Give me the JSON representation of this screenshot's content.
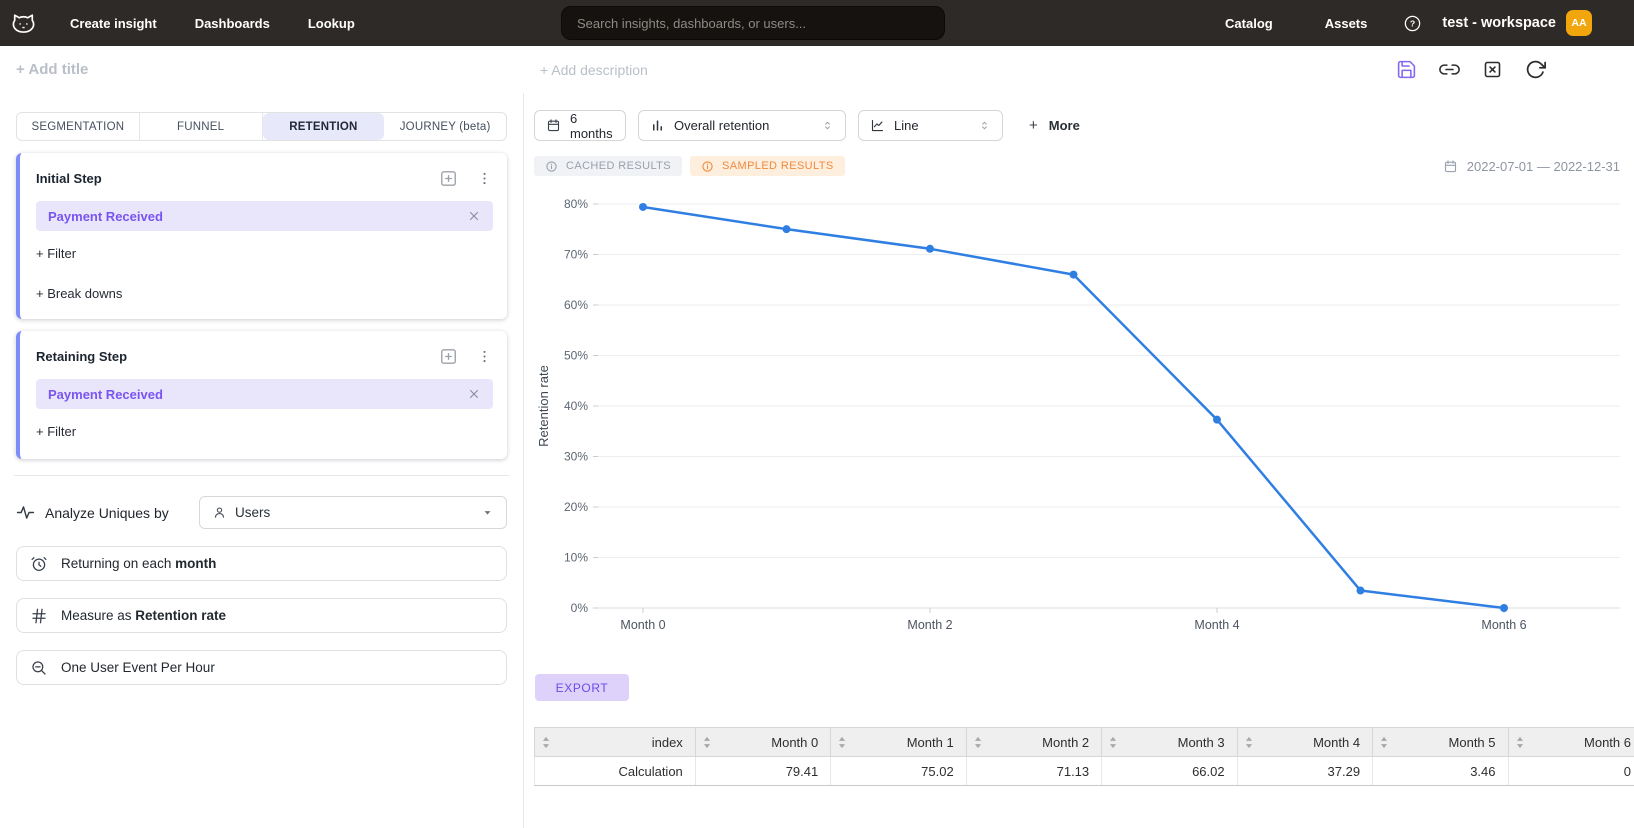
{
  "colors": {
    "header_bg": "#2e2a27",
    "accent_purple": "#7a54f0",
    "chip_bg": "#e9e6fc",
    "card_accent": "#7e8cf7",
    "line_blue": "#2f7fe3",
    "avatar_bg": "#f2a60d",
    "sampled_badge_bg": "#fdeedd",
    "sampled_badge_text": "#f18a3d",
    "export_bg": "#ded2fa",
    "export_text": "#6a4ce6"
  },
  "icons": {
    "question": "?"
  },
  "topnav": {
    "nav_items": [
      "Create insight",
      "Dashboards",
      "Lookup"
    ],
    "search_placeholder": "Search insights, dashboards, or users...",
    "right_items": [
      "Catalog",
      "Assets"
    ],
    "workspace": "test - workspace",
    "avatar_initials": "AA"
  },
  "title_bar": {
    "add_title": "+ Add title",
    "add_description": "+ Add description"
  },
  "sidebar": {
    "tabs": [
      {
        "label": "SEGMENTATION",
        "active": false
      },
      {
        "label": "FUNNEL",
        "active": false
      },
      {
        "label": "RETENTION",
        "active": true
      },
      {
        "label": "JOURNEY (beta)",
        "active": false
      }
    ],
    "initial_step": {
      "title": "Initial Step",
      "event": "Payment Received",
      "filter_label": "+ Filter",
      "breakdown_label": "+ Break downs"
    },
    "retaining_step": {
      "title": "Retaining Step",
      "event": "Payment Received",
      "filter_label": "+ Filter"
    },
    "analyze": {
      "label": "Analyze Uniques by",
      "value": "Users"
    },
    "buttons": [
      {
        "prefix": "Returning on each ",
        "bold": "month",
        "icon": "alarm-clock"
      },
      {
        "prefix": "Measure as ",
        "bold": "Retention rate",
        "icon": "hash"
      },
      {
        "prefix": "One User Event Per Hour",
        "bold": "",
        "icon": "zoom-out"
      }
    ]
  },
  "toolbar": {
    "date_range_button": "6 months",
    "metric_select": "Overall retention",
    "chart_type_select": "Line",
    "more_plus": "+",
    "more_label": "More"
  },
  "results": {
    "cached_badge": "CACHED RESULTS",
    "sampled_badge": "SAMPLED RESULTS",
    "date_range": "2022-07-01 — 2022-12-31"
  },
  "chart_data": {
    "type": "line",
    "x": [
      "Month 0",
      "Month 1",
      "Month 2",
      "Month 3",
      "Month 4",
      "Month 5",
      "Month 6"
    ],
    "values": [
      79.41,
      75.02,
      71.13,
      66.02,
      37.29,
      3.46,
      0
    ],
    "series_name": "Retention rate",
    "title": "",
    "xlabel": "",
    "ylabel": "Retention rate",
    "ylim": [
      0,
      85
    ],
    "yticks": [
      0,
      10,
      20,
      30,
      40,
      50,
      60,
      70,
      80
    ],
    "ytick_suffix": "%",
    "x_labeled": [
      "Month 0",
      "Month 2",
      "Month 4",
      "Month 6"
    ],
    "grid": true,
    "legend_position": "none",
    "line_color": "#2f7fe3"
  },
  "export_label": "EXPORT",
  "table": {
    "columns": [
      "index",
      "Month 0",
      "Month 1",
      "Month 2",
      "Month 3",
      "Month 4",
      "Month 5",
      "Month 6"
    ],
    "rows": [
      [
        "Calculation",
        "79.41",
        "75.02",
        "71.13",
        "66.02",
        "37.29",
        "3.46",
        "0"
      ]
    ]
  }
}
